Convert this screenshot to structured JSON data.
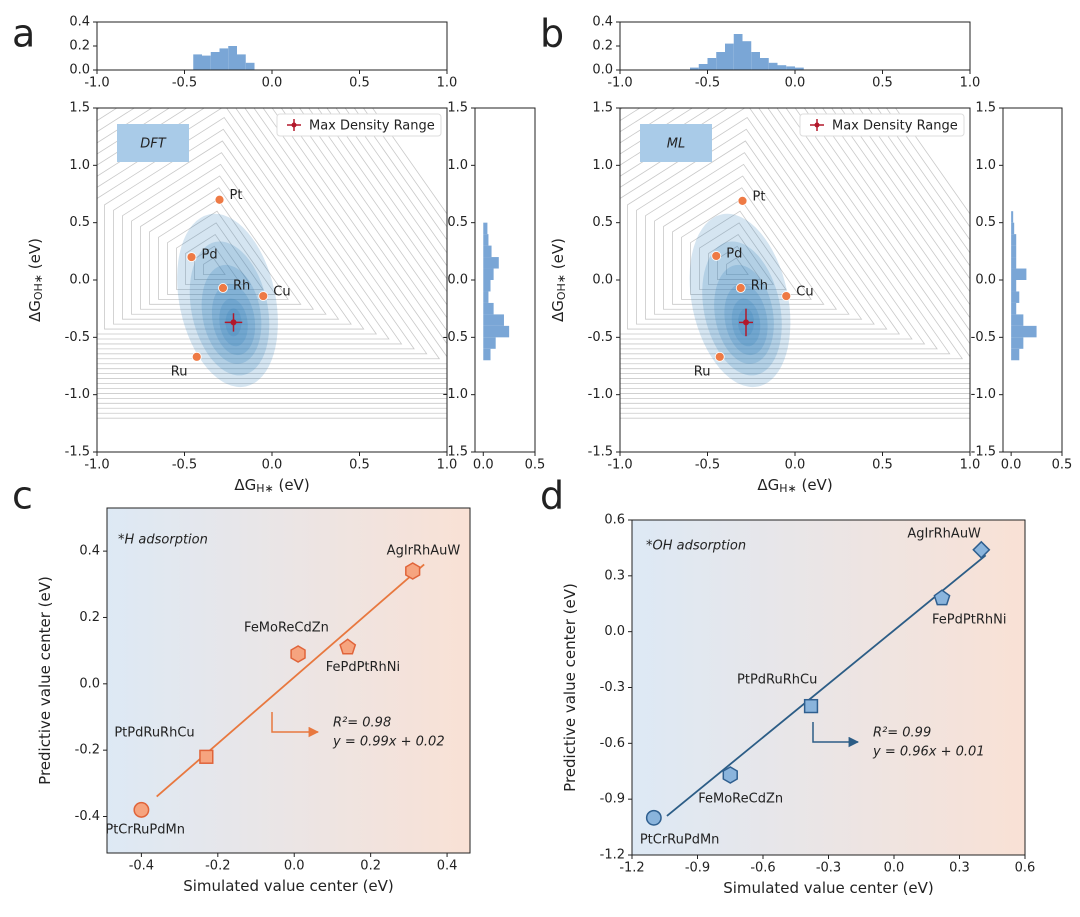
{
  "chart_data": [
    {
      "type": "histogram",
      "orientation": "vertical",
      "panel_label": "a",
      "color": "#7aa6d6",
      "bins": [
        -0.45,
        -0.4,
        -0.35,
        -0.3,
        -0.25,
        -0.2,
        -0.15,
        -0.1
      ],
      "values": [
        0.13,
        0.12,
        0.15,
        0.18,
        0.2,
        0.13,
        0.06
      ],
      "xlim": [
        -1,
        1
      ],
      "xticks": [
        {
          "value": -1,
          "label": "-1.0"
        },
        -0.5,
        {
          "value": 0,
          "label": "0.0"
        },
        0.5,
        {
          "value": 1,
          "label": "1.0"
        }
      ],
      "ylim": [
        0,
        0.4
      ],
      "yticks": [
        {
          "value": 0,
          "label": "0.0"
        },
        0.2,
        0.4
      ]
    },
    {
      "type": "scatter",
      "box_label": "DFT",
      "color": "#ee7a45",
      "x_label": [
        "ΔG",
        "H∗",
        " (eV)"
      ],
      "y_label": [
        "ΔG",
        "OH∗",
        " (eV)"
      ],
      "points": {
        "labels": [
          "Pt",
          "Pd",
          "Rh",
          "Cu",
          "Ru"
        ],
        "x": [
          -0.3,
          -0.46,
          -0.28,
          -0.05,
          -0.43
        ],
        "y": [
          0.7,
          0.2,
          -0.07,
          -0.14,
          -0.67
        ]
      },
      "max_density": {
        "name": "Max Density Range",
        "x": -0.22,
        "y": -0.37,
        "xerr": 0.05,
        "yerr": 0.08,
        "color": "#b2182b"
      },
      "xlim": [
        -1,
        1
      ],
      "xticks": [
        {
          "value": -1,
          "label": "-1.0"
        },
        -0.5,
        {
          "value": 0,
          "label": "0.0"
        },
        0.5,
        {
          "value": 1,
          "label": "1.0"
        }
      ],
      "ylim": [
        -1.5,
        1.5
      ],
      "yticks": [
        -1.5,
        {
          "value": -1,
          "label": "-1.0"
        },
        -0.5,
        {
          "value": 0,
          "label": "0.0"
        },
        0.5,
        {
          "value": 1,
          "label": "1.0"
        },
        1.5
      ]
    },
    {
      "type": "histogram",
      "orientation": "horizontal",
      "color": "#7aa6d6",
      "bins": [
        -0.7,
        -0.6,
        -0.5,
        -0.4,
        -0.3,
        -0.2,
        -0.1,
        0,
        0.1,
        0.2,
        0.3,
        0.4,
        0.5
      ],
      "values": [
        0.07,
        0.12,
        0.25,
        0.2,
        0.1,
        0.05,
        0.07,
        0.1,
        0.15,
        0.08,
        0.05,
        0.04
      ],
      "xlim": [
        -0.08,
        0.5
      ],
      "xticks": [
        {
          "value": 0,
          "label": "0.0"
        },
        0.5
      ],
      "ylim": [
        -1.5,
        1.5
      ],
      "yticks": [
        -1.5,
        {
          "value": -1,
          "label": "-1.0"
        },
        -0.5,
        {
          "value": 0,
          "label": "0.0"
        },
        0.5,
        {
          "value": 1,
          "label": "1.0"
        },
        1.5
      ]
    },
    {
      "type": "histogram",
      "orientation": "vertical",
      "panel_label": "b",
      "color": "#7aa6d6",
      "bins": [
        -0.6,
        -0.55,
        -0.5,
        -0.45,
        -0.4,
        -0.35,
        -0.3,
        -0.25,
        -0.2,
        -0.15,
        -0.1,
        -0.05,
        0,
        0.05
      ],
      "values": [
        0.02,
        0.05,
        0.1,
        0.15,
        0.22,
        0.3,
        0.24,
        0.15,
        0.1,
        0.06,
        0.04,
        0.03,
        0.02
      ],
      "xlim": [
        -1,
        1
      ],
      "xticks": [
        {
          "value": -1,
          "label": "-1.0"
        },
        -0.5,
        {
          "value": 0,
          "label": "0.0"
        },
        0.5,
        {
          "value": 1,
          "label": "1.0"
        }
      ],
      "ylim": [
        0,
        0.4
      ],
      "yticks": [
        {
          "value": 0,
          "label": "0.0"
        },
        0.2,
        0.4
      ]
    },
    {
      "type": "scatter",
      "box_label": "ML",
      "color": "#ee7a45",
      "x_label": [
        "ΔG",
        "H∗",
        " (eV)"
      ],
      "y_label": [
        "ΔG",
        "OH∗",
        " (eV)"
      ],
      "points": {
        "labels": [
          "Pt",
          "Pd",
          "Rh",
          "Cu",
          "Ru"
        ],
        "x": [
          -0.3,
          -0.45,
          -0.31,
          -0.05,
          -0.43
        ],
        "y": [
          0.69,
          0.21,
          -0.07,
          -0.14,
          -0.67
        ]
      },
      "max_density": {
        "name": "Max Density Range",
        "x": -0.28,
        "y": -0.37,
        "xerr": 0.04,
        "yerr": 0.12,
        "color": "#b2182b"
      },
      "xlim": [
        -1,
        1
      ],
      "xticks": [
        {
          "value": -1,
          "label": "-1.0"
        },
        -0.5,
        {
          "value": 0,
          "label": "0.0"
        },
        0.5,
        {
          "value": 1,
          "label": "1.0"
        }
      ],
      "ylim": [
        -1.5,
        1.5
      ],
      "yticks": [
        -1.5,
        {
          "value": -1,
          "label": "-1.0"
        },
        -0.5,
        {
          "value": 0,
          "label": "0.0"
        },
        0.5,
        {
          "value": 1,
          "label": "1.0"
        },
        1.5
      ]
    },
    {
      "type": "histogram",
      "orientation": "horizontal",
      "color": "#7aa6d6",
      "bins": [
        -0.7,
        -0.6,
        -0.5,
        -0.4,
        -0.3,
        -0.2,
        -0.1,
        0,
        0.1,
        0.2,
        0.3,
        0.4,
        0.5,
        0.6
      ],
      "values": [
        0.08,
        0.12,
        0.25,
        0.12,
        0.05,
        0.08,
        0.05,
        0.15,
        0.05,
        0.05,
        0.05,
        0.03,
        0.02
      ],
      "xlim": [
        -0.08,
        0.5
      ],
      "xticks": [
        {
          "value": 0,
          "label": "0.0"
        },
        0.5
      ],
      "ylim": [
        -1.5,
        1.5
      ],
      "yticks": [
        -1.5,
        {
          "value": -1,
          "label": "-1.0"
        },
        -0.5,
        {
          "value": 0,
          "label": "0.0"
        },
        0.5,
        {
          "value": 1,
          "label": "1.0"
        },
        1.5
      ]
    },
    {
      "type": "scatter",
      "panel_label": "c",
      "title": "*H adsorption",
      "x_label": [
        "Simulated value center (eV)"
      ],
      "y_label": [
        "Predictive value center (eV)"
      ],
      "points": {
        "labels": [
          "PtCrRuPdMn",
          "PtPdRuRhCu",
          "FeMoReCdZn",
          "FePdPtRhNi",
          "AgIrRhAuW"
        ],
        "x": [
          -0.4,
          -0.23,
          0.01,
          0.14,
          0.31
        ],
        "y": [
          -0.38,
          -0.22,
          0.09,
          0.11,
          0.34
        ]
      },
      "markers": [
        "circle",
        "square",
        "hexagon",
        "pentagon",
        "hexagon"
      ],
      "color": "#f6a47f",
      "edge_color": "#e0643a",
      "line_color": "#e8783f",
      "fit": {
        "x": [
          -0.36,
          0.34
        ],
        "y": [
          -0.34,
          0.36
        ]
      },
      "annotations": [
        "R²= 0.98",
        "y = 0.99x + 0.02"
      ],
      "background": [
        "#dde9f5",
        "#f9e1d5"
      ],
      "xlim": [
        -0.49,
        0.46
      ],
      "xticks": [
        -0.4,
        -0.2,
        {
          "value": 0,
          "label": "0.0"
        },
        0.2,
        0.4
      ],
      "ylim": [
        -0.51,
        0.53
      ],
      "yticks": [
        -0.4,
        -0.2,
        {
          "value": 0,
          "label": "0.0"
        },
        0.2,
        0.4
      ]
    },
    {
      "type": "scatter",
      "panel_label": "d",
      "title": "*OH adsorption",
      "x_label": [
        "Simulated value center (eV)"
      ],
      "y_label": [
        "Predictive value center (eV)"
      ],
      "points": {
        "labels": [
          "PtCrRuPdMn",
          "FeMoReCdZn",
          "PtPdRuRhCu",
          "FePdPtRhNi",
          "AgIrRhAuW"
        ],
        "x": [
          -1.1,
          -0.75,
          -0.38,
          0.22,
          0.4
        ],
        "y": [
          -1.0,
          -0.77,
          -0.4,
          0.18,
          0.44
        ]
      },
      "markers": [
        "circle",
        "hexagon",
        "square",
        "pentagon",
        "diamond"
      ],
      "color": "#8ab4dc",
      "edge_color": "#2f5f8f",
      "line_color": "#2c5d86",
      "fit": {
        "x": [
          -1.04,
          0.42
        ],
        "y": [
          -0.99,
          0.41
        ]
      },
      "annotations": [
        "R²= 0.99",
        "y = 0.96x + 0.01"
      ],
      "background": [
        "#dde9f5",
        "#f9e1d5"
      ],
      "xlim": [
        -1.2,
        0.6
      ],
      "xticks": [
        -1.2,
        -0.9,
        -0.6,
        -0.3,
        {
          "value": 0,
          "label": "0.0"
        },
        0.3,
        0.6
      ],
      "ylim": [
        -1.2,
        0.6
      ],
      "yticks": [
        -1.2,
        -0.9,
        -0.6,
        -0.3,
        {
          "value": 0,
          "label": "0.0"
        },
        0.3,
        0.6
      ]
    }
  ]
}
